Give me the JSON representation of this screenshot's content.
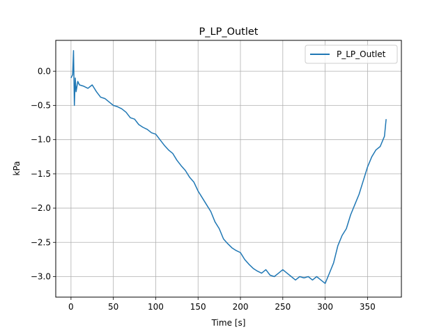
{
  "chart_data": {
    "type": "line",
    "title": "P_LP_Outlet",
    "xlabel": "Time [s]",
    "ylabel": "kPa",
    "xlim": [
      -18,
      390
    ],
    "ylim": [
      -3.3,
      0.45
    ],
    "xticks": [
      0,
      50,
      100,
      150,
      200,
      250,
      300,
      350
    ],
    "yticks": [
      0.0,
      -0.5,
      -1.0,
      -1.5,
      -2.0,
      -2.5,
      -3.0
    ],
    "xtick_labels": [
      "0",
      "50",
      "100",
      "150",
      "200",
      "250",
      "300",
      "350"
    ],
    "ytick_labels": [
      "0.0",
      "−0.5",
      "−1.0",
      "−1.5",
      "−2.0",
      "−2.5",
      "−3.0"
    ],
    "grid": true,
    "legend": {
      "position": "top-right",
      "entries": [
        "P_LP_Outlet"
      ]
    },
    "series": [
      {
        "name": "P_LP_Outlet",
        "color": "#1f77b4",
        "x": [
          0,
          2,
          3,
          4,
          5,
          6,
          8,
          10,
          15,
          20,
          25,
          30,
          35,
          40,
          45,
          50,
          55,
          60,
          65,
          70,
          75,
          80,
          85,
          90,
          95,
          100,
          105,
          110,
          115,
          120,
          125,
          130,
          135,
          140,
          145,
          150,
          155,
          160,
          165,
          170,
          175,
          180,
          185,
          190,
          195,
          200,
          205,
          210,
          215,
          220,
          225,
          230,
          235,
          240,
          245,
          250,
          255,
          260,
          265,
          270,
          275,
          280,
          285,
          290,
          295,
          300,
          305,
          310,
          315,
          320,
          325,
          330,
          335,
          340,
          345,
          350,
          355,
          360,
          365,
          370,
          372
        ],
        "y": [
          -0.1,
          -0.05,
          0.3,
          -0.5,
          -0.1,
          -0.3,
          -0.15,
          -0.2,
          -0.22,
          -0.25,
          -0.2,
          -0.3,
          -0.38,
          -0.4,
          -0.45,
          -0.5,
          -0.52,
          -0.55,
          -0.6,
          -0.68,
          -0.7,
          -0.78,
          -0.82,
          -0.85,
          -0.9,
          -0.92,
          -1.0,
          -1.08,
          -1.15,
          -1.2,
          -1.3,
          -1.38,
          -1.45,
          -1.55,
          -1.62,
          -1.75,
          -1.85,
          -1.95,
          -2.05,
          -2.2,
          -2.3,
          -2.45,
          -2.52,
          -2.58,
          -2.62,
          -2.65,
          -2.75,
          -2.82,
          -2.88,
          -2.92,
          -2.95,
          -2.9,
          -2.98,
          -3.0,
          -2.95,
          -2.9,
          -2.95,
          -3.0,
          -3.05,
          -3.0,
          -3.02,
          -3.0,
          -3.05,
          -3.0,
          -3.05,
          -3.1,
          -2.95,
          -2.8,
          -2.55,
          -2.4,
          -2.3,
          -2.1,
          -1.95,
          -1.8,
          -1.6,
          -1.4,
          -1.25,
          -1.15,
          -1.1,
          -0.95,
          -0.7
        ]
      }
    ]
  }
}
